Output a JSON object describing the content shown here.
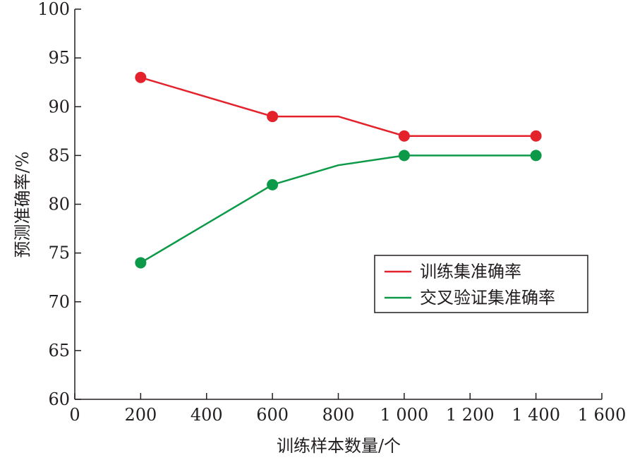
{
  "chart_data": {
    "type": "line",
    "title": "",
    "xlabel": "训练样本数量/个",
    "ylabel": "预测准确率/%",
    "xlim": [
      0,
      1600
    ],
    "ylim": [
      60,
      100
    ],
    "x_ticks": [
      0,
      200,
      400,
      600,
      800,
      1000,
      1200,
      1400,
      1600
    ],
    "x_tick_labels": [
      "0",
      "200",
      "400",
      "600",
      "800",
      "1 000",
      "1 200",
      "1 400",
      "1 600"
    ],
    "y_ticks": [
      60,
      65,
      70,
      75,
      80,
      85,
      90,
      95,
      100
    ],
    "y_tick_labels": [
      "60",
      "65",
      "70",
      "75",
      "80",
      "85",
      "90",
      "95",
      "100"
    ],
    "grid": false,
    "legend_position": "right",
    "series": [
      {
        "name": "训练集准确率",
        "color": "#e3222b",
        "x": [
          200,
          600,
          800,
          1000,
          1400
        ],
        "y": [
          93,
          89,
          89,
          87,
          87
        ],
        "markers": [
          true,
          true,
          false,
          true,
          true
        ]
      },
      {
        "name": "交叉验证集准确率",
        "color": "#0d9a48",
        "x": [
          200,
          600,
          800,
          1000,
          1400
        ],
        "y": [
          74,
          82,
          84,
          85,
          85
        ],
        "markers": [
          true,
          true,
          false,
          true,
          true
        ]
      }
    ]
  }
}
